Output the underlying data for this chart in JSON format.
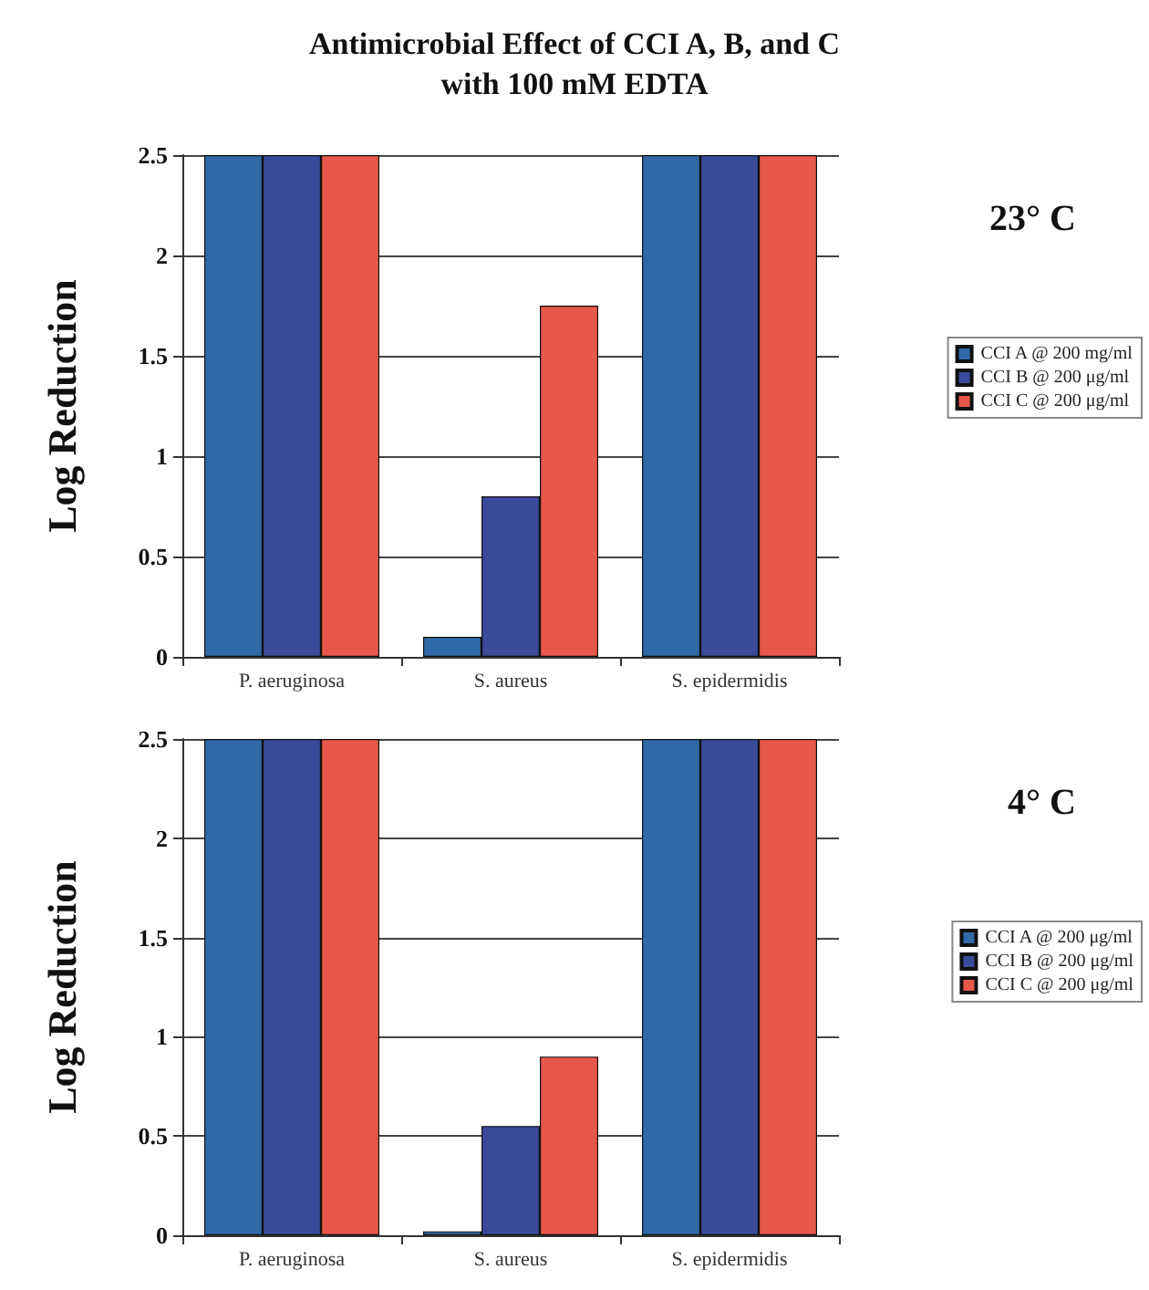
{
  "chart_data": [
    {
      "type": "bar",
      "title": "Antimicrobial Effect of CCI A, B, and C\nwith 100 mM EDTA",
      "ylabel": "Log Reduction",
      "annotations": [
        "23° C"
      ],
      "categories": [
        "P. aeruginosa",
        "S. aureus",
        "S. epidermidis"
      ],
      "series": [
        {
          "name": "CCI A @ 200 mg/ml",
          "color": "#2f6aa6",
          "values": [
            2.5,
            0.1,
            2.5
          ]
        },
        {
          "name": "CCI B @ 200 μg/ml",
          "color": "#3b4b9b",
          "values": [
            2.5,
            0.8,
            2.5
          ]
        },
        {
          "name": "CCI C @ 200 μg/ml",
          "color": "#e8584a",
          "values": [
            2.5,
            1.75,
            2.5
          ]
        }
      ],
      "ylim": [
        0,
        2.5
      ],
      "yticks": [
        0,
        0.5,
        1,
        1.5,
        2,
        2.5
      ],
      "grid": "y",
      "legend": "right"
    },
    {
      "type": "bar",
      "ylabel": "Log Reduction",
      "annotations": [
        "4° C"
      ],
      "categories": [
        "P. aeruginosa",
        "S. aureus",
        "S. epidermidis"
      ],
      "series": [
        {
          "name": "CCI A @ 200 μg/ml",
          "color": "#2f6aa6",
          "values": [
            2.5,
            0.02,
            2.5
          ]
        },
        {
          "name": "CCI B @ 200 μg/ml",
          "color": "#3b4b9b",
          "values": [
            2.5,
            0.55,
            2.5
          ]
        },
        {
          "name": "CCI C @ 200 μg/ml",
          "color": "#e8584a",
          "values": [
            2.5,
            0.9,
            2.5
          ]
        }
      ],
      "ylim": [
        0,
        2.5
      ],
      "yticks": [
        0,
        0.5,
        1,
        1.5,
        2,
        2.5
      ],
      "grid": "y",
      "legend": "right"
    }
  ]
}
